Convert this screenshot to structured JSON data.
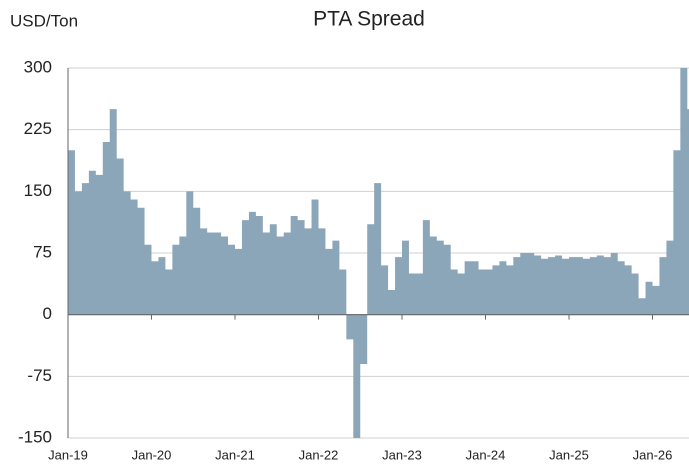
{
  "chart_data": {
    "type": "area",
    "title": "PTA Spread",
    "ylabel": "USD/Ton",
    "color": "#8ca6b9",
    "categories": [
      "Jan-19",
      null,
      null,
      null,
      null,
      null,
      null,
      null,
      null,
      null,
      null,
      null,
      "Jan-20",
      null,
      null,
      null,
      null,
      null,
      null,
      null,
      null,
      null,
      null,
      null,
      "Jan-21",
      null,
      null,
      null,
      null,
      null,
      null,
      null,
      null,
      null,
      null,
      null,
      "Jan-22",
      null,
      null,
      null,
      null,
      null,
      null,
      null,
      null,
      null,
      null,
      null,
      "Jan-23",
      null,
      null,
      null,
      null,
      null,
      null,
      null,
      null,
      null,
      null,
      null,
      "Jan-24",
      null,
      null,
      null,
      null,
      null,
      null,
      null,
      null,
      null,
      null,
      null,
      "Jan-25",
      null,
      null,
      null,
      null,
      null,
      null,
      null,
      null,
      null,
      null,
      null,
      "Jan-26",
      null,
      null,
      null,
      null,
      null
    ],
    "values": [
      200,
      150,
      160,
      175,
      170,
      210,
      250,
      190,
      150,
      140,
      130,
      85,
      65,
      70,
      55,
      85,
      95,
      150,
      130,
      105,
      100,
      100,
      95,
      85,
      80,
      115,
      125,
      120,
      100,
      110,
      95,
      100,
      120,
      115,
      105,
      140,
      105,
      80,
      90,
      55,
      -30,
      -150,
      -60,
      110,
      160,
      60,
      30,
      70,
      90,
      50,
      50,
      115,
      95,
      90,
      85,
      55,
      50,
      65,
      65,
      55,
      55,
      60,
      65,
      60,
      70,
      75,
      75,
      72,
      68,
      70,
      72,
      68,
      70,
      70,
      68,
      70,
      72,
      70,
      75,
      65,
      60,
      50,
      20,
      40,
      35,
      70,
      90,
      200,
      300,
      250
    ],
    "ylim": [
      -150,
      300
    ],
    "yticks": [
      -150,
      -75,
      0,
      75,
      150,
      225,
      300
    ],
    "grid": true
  }
}
